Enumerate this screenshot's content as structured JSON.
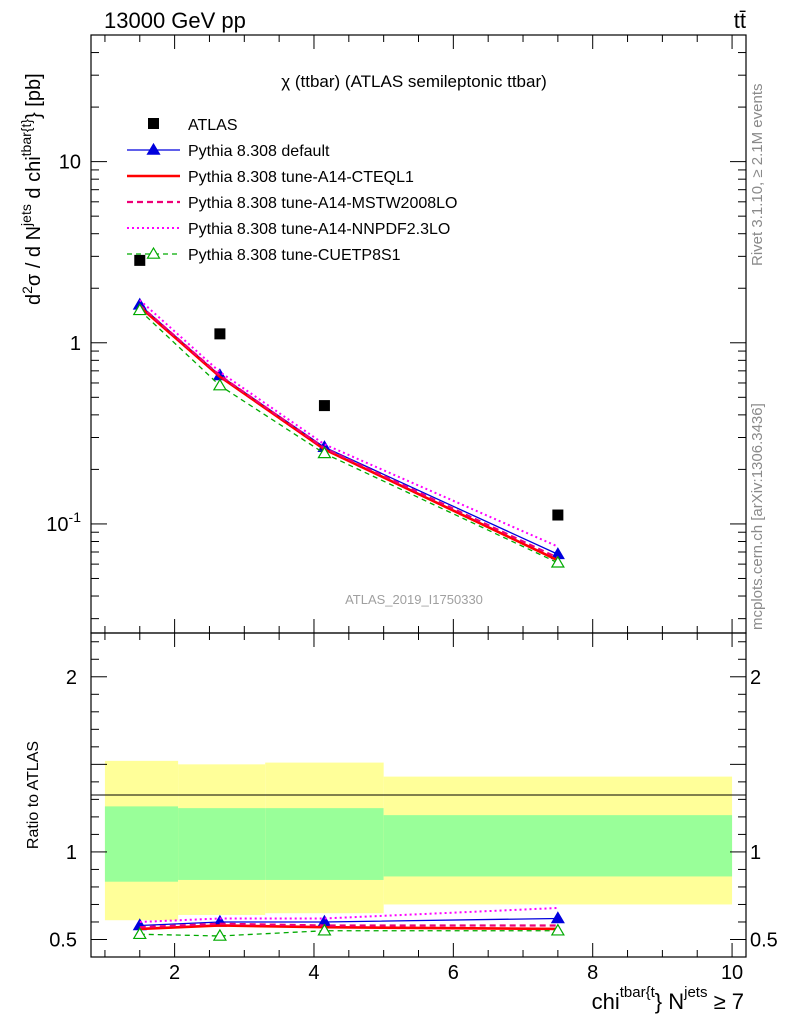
{
  "header": {
    "left": "13000 GeV pp",
    "right": "tt̄"
  },
  "side_text": {
    "rivet": "Rivet 3.1.10, ≥ 2.1M events",
    "mcplots": "mcplots.cern.ch [arXiv:1306.3436]"
  },
  "watermark": "ATLAS_2019_I1750330",
  "top_ylabel": "d²σ / d N^jets d chi^tbar{t} [pb]",
  "bottom_ylabel": "Ratio to ATLAS",
  "xlabel": "chi^tbar{t} N^jets ≥ 7",
  "chart_data": [
    {
      "type": "line",
      "title": "χ (ttbar) (ATLAS semileptonic ttbar)",
      "ylabel": "d²σ / d N^jets d chi^tbar{t} [pb]",
      "xlabel": "chi^tbar{t} N^jets ≥ 7",
      "yscale": "log",
      "xlim": [
        0.8,
        10.2
      ],
      "ylim": [
        0.025,
        50
      ],
      "yticks": [
        "10^-1",
        "1",
        "10"
      ],
      "legend_placement": "top-left",
      "x": [
        1.5,
        2.65,
        4.15,
        7.5
      ],
      "series": [
        {
          "name": "ATLAS",
          "values": [
            2.85,
            1.12,
            0.45,
            0.112
          ],
          "color": "#000000",
          "style": "marker-square"
        },
        {
          "name": "Pythia 8.308 default",
          "values": [
            1.62,
            0.66,
            0.265,
            0.068
          ],
          "color": "#0000dd",
          "style": "solid-triangle"
        },
        {
          "name": "Pythia 8.308 tune-A14-CTEQL1",
          "values": [
            1.58,
            0.65,
            0.258,
            0.063
          ],
          "color": "#ff0000",
          "style": "solid-thick"
        },
        {
          "name": "Pythia 8.308 tune-A14-MSTW2008LO",
          "values": [
            1.61,
            0.66,
            0.262,
            0.065
          ],
          "color": "#ee0077",
          "style": "dashed"
        },
        {
          "name": "Pythia 8.308 tune-A14-NNPDF2.3LO",
          "values": [
            1.72,
            0.69,
            0.275,
            0.075
          ],
          "color": "#ff00ff",
          "style": "dotted"
        },
        {
          "name": "Pythia 8.308 tune-CUETP8S1",
          "values": [
            1.51,
            0.58,
            0.245,
            0.061
          ],
          "color": "#00aa00",
          "style": "dashed-open-triangle"
        }
      ]
    },
    {
      "type": "line",
      "ylabel": "Ratio to ATLAS",
      "xlim": [
        0.8,
        10.2
      ],
      "ylim": [
        0.4,
        2.25
      ],
      "yticks": [
        "0.5",
        "1",
        "2"
      ],
      "xticks": [
        "2",
        "4",
        "6",
        "8",
        "10"
      ],
      "x": [
        1.5,
        2.65,
        4.15,
        7.5
      ],
      "bands": {
        "bins": [
          [
            1.0,
            2.05
          ],
          [
            2.05,
            3.3
          ],
          [
            3.3,
            5.0
          ],
          [
            5.0,
            10.0
          ]
        ],
        "yellow": [
          [
            0.61,
            1.52
          ],
          [
            0.64,
            1.5
          ],
          [
            0.65,
            1.51
          ],
          [
            0.7,
            1.43
          ]
        ],
        "green": [
          [
            0.83,
            1.26
          ],
          [
            0.84,
            1.25
          ],
          [
            0.84,
            1.25
          ],
          [
            0.86,
            1.21
          ]
        ]
      },
      "series": [
        {
          "name": "Pythia 8.308 default",
          "values": [
            0.58,
            0.6,
            0.6,
            0.62
          ],
          "color": "#0000dd",
          "style": "solid-triangle"
        },
        {
          "name": "Pythia 8.308 tune-A14-CTEQL1",
          "values": [
            0.56,
            0.58,
            0.57,
            0.56
          ],
          "color": "#ff0000",
          "style": "solid-thick"
        },
        {
          "name": "Pythia 8.308 tune-A14-MSTW2008LO",
          "values": [
            0.57,
            0.59,
            0.58,
            0.58
          ],
          "color": "#ee0077",
          "style": "dashed"
        },
        {
          "name": "Pythia 8.308 tune-A14-NNPDF2.3LO",
          "values": [
            0.6,
            0.62,
            0.62,
            0.68
          ],
          "color": "#ff00ff",
          "style": "dotted"
        },
        {
          "name": "Pythia 8.308 tune-CUETP8S1",
          "values": [
            0.53,
            0.52,
            0.55,
            0.55
          ],
          "color": "#00aa00",
          "style": "dashed-open-triangle"
        }
      ]
    }
  ]
}
